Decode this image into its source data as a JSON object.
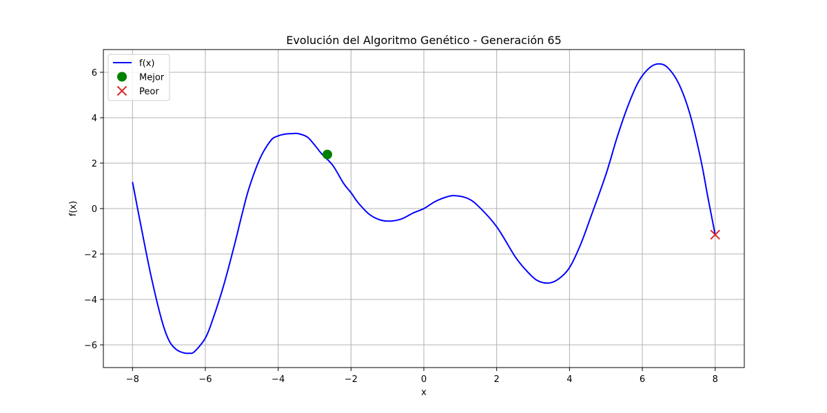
{
  "chart_data": {
    "type": "line",
    "title": "Evolución del Algoritmo Genético - Generación 65",
    "xlabel": "x",
    "ylabel": "f(x)",
    "xlim": [
      -8.8,
      8.8
    ],
    "ylim": [
      -7,
      7
    ],
    "x_ticks": [
      -8,
      -6,
      -4,
      -2,
      0,
      2,
      4,
      6,
      8
    ],
    "y_ticks": [
      -6,
      -4,
      -2,
      0,
      2,
      4,
      6
    ],
    "x_tick_labels": [
      "−8",
      "−6",
      "−4",
      "−2",
      "0",
      "2",
      "4",
      "6",
      "8"
    ],
    "y_tick_labels": [
      "−6",
      "−4",
      "−2",
      "0",
      "2",
      "4",
      "6"
    ],
    "grid": true,
    "legend_position": "top-left",
    "series": [
      {
        "name": "f(x)",
        "kind": "line",
        "color": "#0000ff",
        "points": [
          [
            -8.0,
            1.17
          ],
          [
            -7.8,
            -0.5
          ],
          [
            -7.5,
            -2.9
          ],
          [
            -7.2,
            -4.9
          ],
          [
            -7.0,
            -5.8
          ],
          [
            -6.8,
            -6.2
          ],
          [
            -6.6,
            -6.35
          ],
          [
            -6.45,
            -6.37
          ],
          [
            -6.3,
            -6.3
          ],
          [
            -6.0,
            -5.7
          ],
          [
            -5.8,
            -4.9
          ],
          [
            -5.5,
            -3.4
          ],
          [
            -5.2,
            -1.6
          ],
          [
            -5.0,
            -0.3
          ],
          [
            -4.8,
            0.9
          ],
          [
            -4.5,
            2.2
          ],
          [
            -4.2,
            3.0
          ],
          [
            -4.0,
            3.2
          ],
          [
            -3.8,
            3.28
          ],
          [
            -3.6,
            3.3
          ],
          [
            -3.45,
            3.3
          ],
          [
            -3.2,
            3.15
          ],
          [
            -3.0,
            2.8
          ],
          [
            -2.8,
            2.4
          ],
          [
            -2.5,
            1.9
          ],
          [
            -2.2,
            1.1
          ],
          [
            -2.0,
            0.7
          ],
          [
            -1.8,
            0.25
          ],
          [
            -1.5,
            -0.25
          ],
          [
            -1.2,
            -0.5
          ],
          [
            -0.9,
            -0.55
          ],
          [
            -0.6,
            -0.45
          ],
          [
            -0.3,
            -0.2
          ],
          [
            0.0,
            0.0
          ],
          [
            0.3,
            0.3
          ],
          [
            0.6,
            0.5
          ],
          [
            0.85,
            0.57
          ],
          [
            1.2,
            0.45
          ],
          [
            1.5,
            0.1
          ],
          [
            2.0,
            -0.8
          ],
          [
            2.5,
            -2.1
          ],
          [
            2.8,
            -2.7
          ],
          [
            3.1,
            -3.15
          ],
          [
            3.42,
            -3.28
          ],
          [
            3.7,
            -3.1
          ],
          [
            4.0,
            -2.6
          ],
          [
            4.3,
            -1.6
          ],
          [
            4.6,
            -0.3
          ],
          [
            5.0,
            1.5
          ],
          [
            5.3,
            3.1
          ],
          [
            5.6,
            4.5
          ],
          [
            5.9,
            5.6
          ],
          [
            6.2,
            6.2
          ],
          [
            6.45,
            6.37
          ],
          [
            6.7,
            6.2
          ],
          [
            7.0,
            5.5
          ],
          [
            7.3,
            4.2
          ],
          [
            7.6,
            2.2
          ],
          [
            7.8,
            0.5
          ],
          [
            8.0,
            -1.15
          ]
        ]
      },
      {
        "name": "Mejor",
        "kind": "scatter",
        "marker": "circle",
        "color": "#008000",
        "points": [
          [
            -2.65,
            2.38
          ]
        ]
      },
      {
        "name": "Peor",
        "kind": "scatter",
        "marker": "x",
        "color": "#d62728",
        "points": [
          [
            8.0,
            -1.15
          ]
        ]
      }
    ]
  }
}
